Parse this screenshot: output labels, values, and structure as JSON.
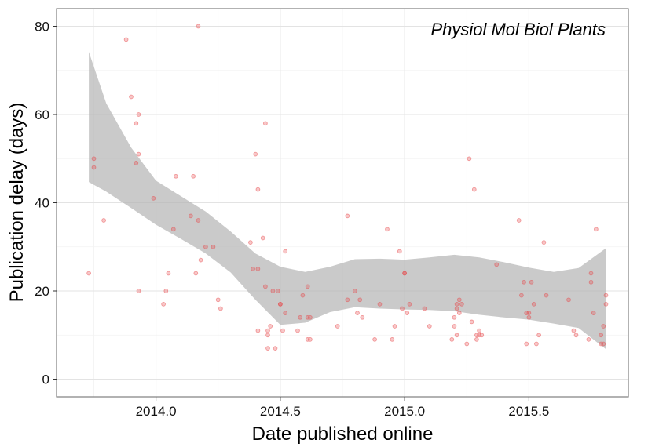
{
  "chart_data": {
    "type": "scatter",
    "title": "",
    "annotation": "Physiol Mol Biol Plants",
    "xlabel": "Date published online",
    "ylabel": "Publication delay (days)",
    "xlim": [
      2013.6,
      2015.9
    ],
    "ylim": [
      -4,
      84
    ],
    "x_ticks": [
      2014.0,
      2014.5,
      2015.0,
      2015.5
    ],
    "x_tick_labels": [
      "2014.0",
      "2014.5",
      "2015.0",
      "2015.5"
    ],
    "y_ticks": [
      0,
      20,
      40,
      60,
      80
    ],
    "y_tick_labels": [
      "0",
      "20",
      "40",
      "60",
      "80"
    ],
    "grid": true,
    "point_color": "#e8474a",
    "smooth_band_color": "#b3b3b3",
    "points": [
      [
        2013.73,
        24
      ],
      [
        2013.75,
        50
      ],
      [
        2013.75,
        48
      ],
      [
        2013.79,
        36
      ],
      [
        2013.88,
        77
      ],
      [
        2013.9,
        64
      ],
      [
        2013.92,
        58
      ],
      [
        2013.93,
        60
      ],
      [
        2013.93,
        51
      ],
      [
        2013.92,
        49
      ],
      [
        2013.93,
        20
      ],
      [
        2013.99,
        41
      ],
      [
        2014.03,
        17
      ],
      [
        2014.04,
        20
      ],
      [
        2014.05,
        24
      ],
      [
        2014.07,
        34
      ],
      [
        2014.08,
        46
      ],
      [
        2014.14,
        37
      ],
      [
        2014.15,
        46
      ],
      [
        2014.16,
        24
      ],
      [
        2014.17,
        36
      ],
      [
        2014.17,
        80
      ],
      [
        2014.18,
        27
      ],
      [
        2014.2,
        30
      ],
      [
        2014.23,
        30
      ],
      [
        2014.25,
        18
      ],
      [
        2014.26,
        16
      ],
      [
        2014.38,
        31
      ],
      [
        2014.39,
        25
      ],
      [
        2014.4,
        51
      ],
      [
        2014.41,
        25
      ],
      [
        2014.41,
        43
      ],
      [
        2014.41,
        11
      ],
      [
        2014.43,
        32
      ],
      [
        2014.44,
        21
      ],
      [
        2014.44,
        58
      ],
      [
        2014.45,
        11
      ],
      [
        2014.45,
        10
      ],
      [
        2014.45,
        7
      ],
      [
        2014.46,
        12
      ],
      [
        2014.47,
        20
      ],
      [
        2014.48,
        7
      ],
      [
        2014.49,
        20
      ],
      [
        2014.5,
        17
      ],
      [
        2014.5,
        17
      ],
      [
        2014.51,
        11
      ],
      [
        2014.52,
        29
      ],
      [
        2014.52,
        15
      ],
      [
        2014.57,
        11
      ],
      [
        2014.58,
        14
      ],
      [
        2014.59,
        19
      ],
      [
        2014.61,
        14
      ],
      [
        2014.61,
        9
      ],
      [
        2014.62,
        9
      ],
      [
        2014.61,
        21
      ],
      [
        2014.62,
        14
      ],
      [
        2014.73,
        12
      ],
      [
        2014.77,
        37
      ],
      [
        2014.77,
        18
      ],
      [
        2014.8,
        20
      ],
      [
        2014.81,
        15
      ],
      [
        2014.82,
        18
      ],
      [
        2014.83,
        14
      ],
      [
        2014.88,
        9
      ],
      [
        2014.9,
        17
      ],
      [
        2014.93,
        34
      ],
      [
        2014.95,
        9
      ],
      [
        2014.96,
        12
      ],
      [
        2014.98,
        29
      ],
      [
        2014.99,
        16
      ],
      [
        2015.0,
        24
      ],
      [
        2015.0,
        24
      ],
      [
        2015.01,
        15
      ],
      [
        2015.02,
        17
      ],
      [
        2015.08,
        16
      ],
      [
        2015.1,
        12
      ],
      [
        2015.19,
        9
      ],
      [
        2015.2,
        12
      ],
      [
        2015.2,
        14
      ],
      [
        2015.21,
        16
      ],
      [
        2015.21,
        10
      ],
      [
        2015.21,
        17
      ],
      [
        2015.22,
        18
      ],
      [
        2015.22,
        15
      ],
      [
        2015.23,
        17
      ],
      [
        2015.25,
        8
      ],
      [
        2015.26,
        50
      ],
      [
        2015.27,
        13
      ],
      [
        2015.28,
        43
      ],
      [
        2015.29,
        10
      ],
      [
        2015.29,
        9
      ],
      [
        2015.3,
        11
      ],
      [
        2015.3,
        10
      ],
      [
        2015.31,
        10
      ],
      [
        2015.37,
        26
      ],
      [
        2015.46,
        36
      ],
      [
        2015.47,
        19
      ],
      [
        2015.48,
        22
      ],
      [
        2015.49,
        15
      ],
      [
        2015.49,
        8
      ],
      [
        2015.5,
        14
      ],
      [
        2015.5,
        15
      ],
      [
        2015.51,
        22
      ],
      [
        2015.52,
        17
      ],
      [
        2015.53,
        8
      ],
      [
        2015.54,
        10
      ],
      [
        2015.56,
        31
      ],
      [
        2015.57,
        19
      ],
      [
        2015.66,
        18
      ],
      [
        2015.68,
        11
      ],
      [
        2015.69,
        10
      ],
      [
        2015.74,
        9
      ],
      [
        2015.75,
        22
      ],
      [
        2015.75,
        24
      ],
      [
        2015.76,
        15
      ],
      [
        2015.77,
        34
      ],
      [
        2015.79,
        8
      ],
      [
        2015.79,
        10
      ],
      [
        2015.8,
        8
      ],
      [
        2015.8,
        12
      ],
      [
        2015.81,
        17
      ],
      [
        2015.81,
        19
      ]
    ],
    "smooth_x": [
      2013.73,
      2013.8,
      2013.9,
      2014.0,
      2014.1,
      2014.2,
      2014.3,
      2014.4,
      2014.5,
      2014.6,
      2014.7,
      2014.8,
      2014.9,
      2015.0,
      2015.1,
      2015.2,
      2015.3,
      2015.4,
      2015.5,
      2015.6,
      2015.7,
      2015.81
    ],
    "smooth_upper": [
      74.2,
      62.5,
      52.5,
      45,
      41.5,
      38,
      33.5,
      28.5,
      25.5,
      24.3,
      25.5,
      27.2,
      27.3,
      27.1,
      27.6,
      28.2,
      27.6,
      26.5,
      25.3,
      24.3,
      25.2,
      29.7
    ],
    "smooth_lower": [
      44.7,
      42.5,
      38.8,
      35,
      31.8,
      28.5,
      24.2,
      18,
      12.3,
      12.8,
      15.2,
      16.3,
      16,
      15.8,
      15.7,
      15.4,
      14.6,
      14,
      13.5,
      12.6,
      11.6,
      6.8
    ]
  }
}
